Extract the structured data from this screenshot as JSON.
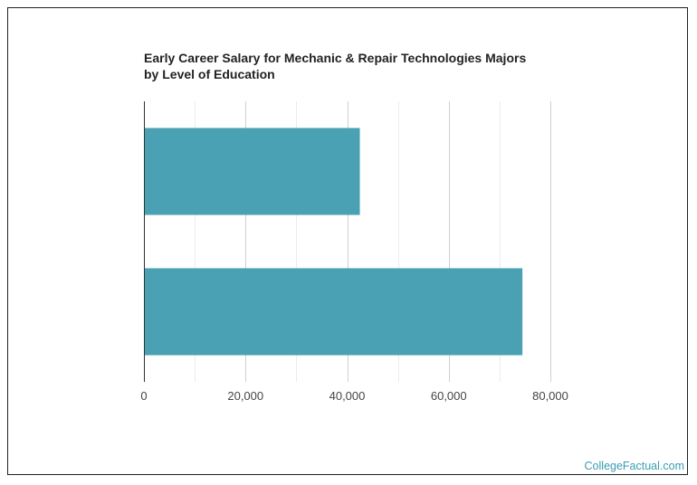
{
  "chart_data": {
    "type": "bar",
    "orientation": "horizontal",
    "title": "Early Career Salary for Mechanic & Repair Technologies Majors by Level of Education",
    "categories": [
      "",
      ""
    ],
    "values": [
      42500,
      74500
    ],
    "xlim": [
      0,
      80000
    ],
    "xticks": [
      0,
      20000,
      40000,
      60000,
      80000
    ],
    "xtick_labels": [
      "0",
      "20,000",
      "40,000",
      "60,000",
      "80,000"
    ],
    "grid": true,
    "bar_color": "#4aa1b3"
  },
  "footer": {
    "brand": "CollegeFactual.com"
  }
}
